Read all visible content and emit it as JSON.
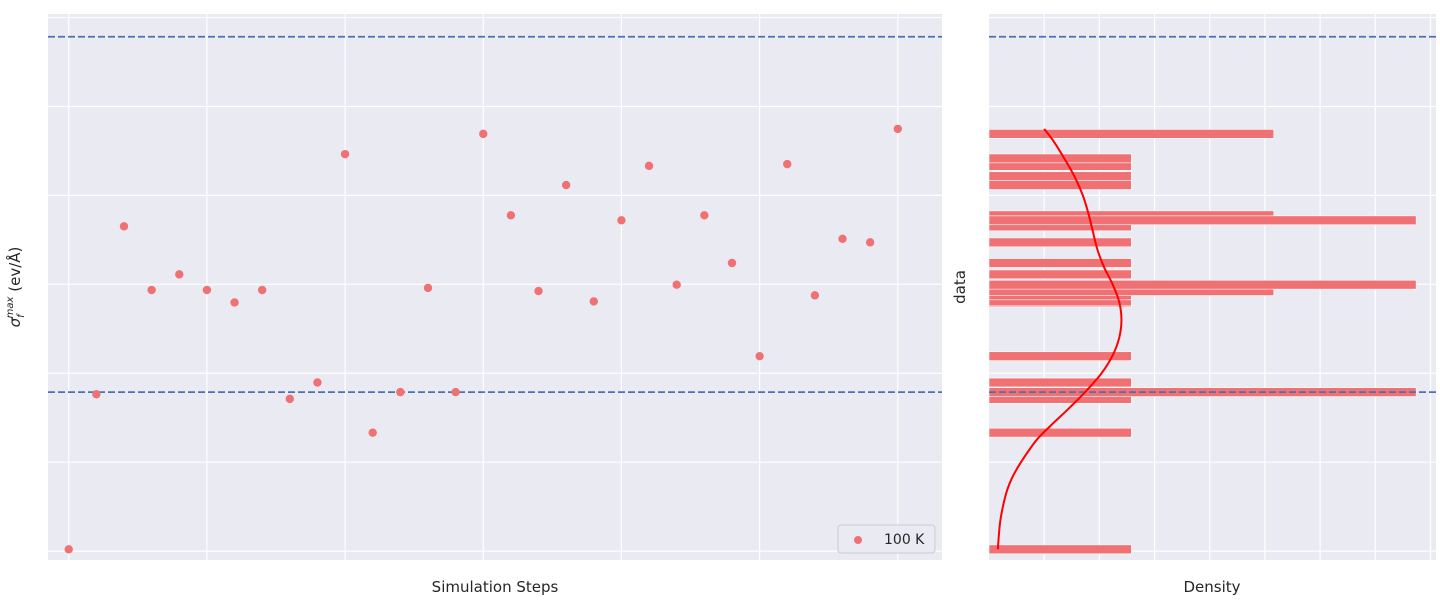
{
  "chart_data": [
    {
      "type": "scatter",
      "xlabel": "Simulation Steps",
      "ylabel_main": "σ",
      "ylabel_sub": "f",
      "ylabel_sup": "max",
      "ylabel_unit": " (ev/Å)",
      "xlim": [
        -0.75,
        31.6
      ],
      "ylim": [
        -0.25,
        15.1
      ],
      "grid": true,
      "legend_position": "lower-right",
      "series": [
        {
          "name": "100 K",
          "color": "#f07174",
          "x": [
            0,
            1,
            2,
            3,
            4,
            5,
            6,
            7,
            8,
            9,
            10,
            11,
            12,
            13,
            14,
            15,
            16,
            17,
            18,
            19,
            20,
            21,
            22,
            23,
            24,
            25,
            26,
            27,
            28,
            29,
            30
          ],
          "y": [
            0.05,
            4.41,
            9.13,
            7.34,
            7.78,
            7.34,
            6.99,
            7.34,
            4.28,
            4.74,
            11.16,
            3.33,
            4.47,
            7.4,
            4.47,
            11.73,
            9.44,
            7.31,
            10.29,
            7.02,
            9.3,
            10.83,
            7.49,
            9.44,
            8.1,
            5.48,
            10.88,
            7.19,
            8.78,
            8.68,
            11.87
          ]
        }
      ],
      "hlines": [
        {
          "y": 14.46,
          "color": "#4c72b0",
          "style": "dashed"
        },
        {
          "y": 4.47,
          "color": "#4c72b0",
          "style": "dashed"
        }
      ]
    },
    {
      "type": "histogram-horizontal",
      "xlabel": "Density",
      "ylabel": "data",
      "orientation": "horizontal",
      "ylim": [
        -0.25,
        15.1
      ],
      "xlim": [
        0,
        0.405
      ],
      "grid": true,
      "bin_width": 0.25,
      "bars": [
        {
          "y": 0.05,
          "density": 0.129
        },
        {
          "y": 3.33,
          "density": 0.129
        },
        {
          "y": 4.28,
          "density": 0.129
        },
        {
          "y": 4.47,
          "density": 0.387
        },
        {
          "y": 4.74,
          "density": 0.129
        },
        {
          "y": 5.48,
          "density": 0.129
        },
        {
          "y": 6.99,
          "density": 0.129
        },
        {
          "y": 7.02,
          "density": 0.129
        },
        {
          "y": 7.19,
          "density": 0.129
        },
        {
          "y": 7.31,
          "density": 0.258
        },
        {
          "y": 7.49,
          "density": 0.387
        },
        {
          "y": 7.78,
          "density": 0.129
        },
        {
          "y": 8.1,
          "density": 0.129
        },
        {
          "y": 8.68,
          "density": 0.129
        },
        {
          "y": 9.13,
          "density": 0.129
        },
        {
          "y": 9.44,
          "density": 0.258
        },
        {
          "y": 9.3,
          "density": 0.387
        },
        {
          "y": 10.29,
          "density": 0.129
        },
        {
          "y": 10.54,
          "density": 0.129
        },
        {
          "y": 10.83,
          "density": 0.129
        },
        {
          "y": 11.04,
          "density": 0.129
        },
        {
          "y": 11.73,
          "density": 0.258
        }
      ],
      "kde": {
        "color": "#ff0000",
        "y": [
          0.05,
          1.0,
          2.0,
          3.0,
          3.5,
          4.0,
          4.5,
          5.0,
          5.5,
          6.0,
          6.5,
          7.0,
          7.5,
          8.0,
          8.5,
          9.0,
          9.5,
          10.0,
          10.5,
          11.0,
          11.5,
          11.87
        ],
        "density": [
          0.008,
          0.011,
          0.02,
          0.04,
          0.055,
          0.072,
          0.088,
          0.102,
          0.112,
          0.118,
          0.12,
          0.118,
          0.112,
          0.104,
          0.098,
          0.094,
          0.09,
          0.085,
          0.078,
          0.069,
          0.059,
          0.05
        ]
      },
      "hlines": [
        {
          "y": 14.46,
          "color": "#4c72b0",
          "style": "dashed"
        },
        {
          "y": 4.47,
          "color": "#4c72b0",
          "style": "dashed"
        }
      ]
    }
  ]
}
